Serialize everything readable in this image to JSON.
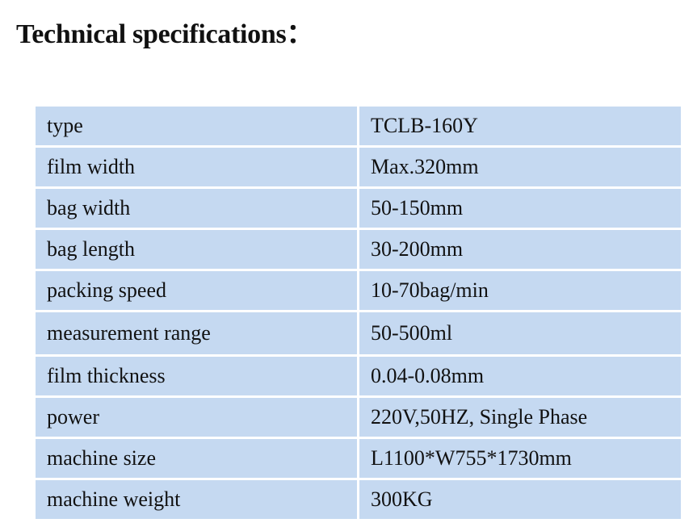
{
  "header": {
    "title": "Technical specifications："
  },
  "table": {
    "rows": [
      [
        "type",
        "TCLB-160Y"
      ],
      [
        "film width",
        "Max.320mm"
      ],
      [
        "bag width",
        "50-150mm"
      ],
      [
        "bag length",
        "30-200mm"
      ],
      [
        "packing speed",
        "10-70bag/min"
      ],
      [
        "measurement range",
        "50-500ml"
      ],
      [
        "film thickness",
        "0.04-0.08mm"
      ],
      [
        "power",
        "220V,50HZ, Single Phase"
      ],
      [
        "machine size",
        "L1100*W755*1730mm"
      ],
      [
        "machine weight",
        "300KG"
      ]
    ]
  }
}
